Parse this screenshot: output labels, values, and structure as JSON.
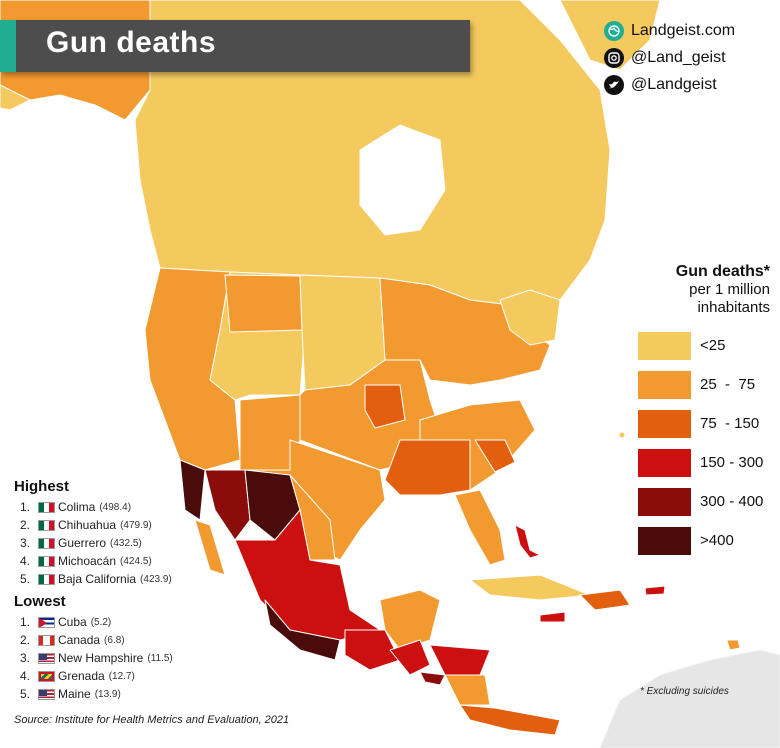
{
  "header": {
    "title": "Gun deaths"
  },
  "socials": [
    {
      "icon": "globe-icon",
      "text": "Landgeist.com"
    },
    {
      "icon": "instagram-icon",
      "text": "@Land_geist"
    },
    {
      "icon": "twitter-icon",
      "text": "@Landgeist"
    }
  ],
  "legend": {
    "title": "Gun deaths*",
    "subtitle_1": "per 1 million",
    "subtitle_2": "inhabitants",
    "items": [
      {
        "label": "<25",
        "color": "#f4c95d"
      },
      {
        "label": "25  -  75",
        "color": "#f29a30"
      },
      {
        "label": "75  - 150",
        "color": "#e25f0f"
      },
      {
        "label": "150 - 300",
        "color": "#cc0f0f"
      },
      {
        "label": "300 - 400",
        "color": "#8c0c0c"
      },
      {
        "label": ">400",
        "color": "#4a0b0b"
      }
    ]
  },
  "highest": {
    "heading": "Highest",
    "items": [
      {
        "rank": "1.",
        "name": "Colima",
        "value": "(498.4)",
        "flag": "mexico"
      },
      {
        "rank": "2.",
        "name": "Chihuahua",
        "value": "(479.9)",
        "flag": "mexico"
      },
      {
        "rank": "3.",
        "name": "Guerrero",
        "value": "(432.5)",
        "flag": "mexico"
      },
      {
        "rank": "4.",
        "name": "Michoacán",
        "value": "(424.5)",
        "flag": "mexico"
      },
      {
        "rank": "5.",
        "name": "Baja California",
        "value": "(423.9)",
        "flag": "mexico"
      }
    ]
  },
  "lowest": {
    "heading": "Lowest",
    "items": [
      {
        "rank": "1.",
        "name": "Cuba",
        "value": "(5.2)",
        "flag": "cuba"
      },
      {
        "rank": "2.",
        "name": "Canada",
        "value": "(6.8)",
        "flag": "canada"
      },
      {
        "rank": "3.",
        "name": "New Hampshire",
        "value": "(11.5)",
        "flag": "usa"
      },
      {
        "rank": "4.",
        "name": "Grenada",
        "value": "(12.7)",
        "flag": "grenada"
      },
      {
        "rank": "5.",
        "name": "Maine",
        "value": "(13.9)",
        "flag": "usa"
      }
    ]
  },
  "footnote": "* Excluding suicides",
  "source": "Source: Institute for Health Metrics and Evaluation, 2021",
  "colors": {
    "water": "#ffffff",
    "land_outside": "#e6e6e6",
    "border": "#ffffff",
    "accent": "#1fae8f",
    "title_bg": "#4d4d4d"
  },
  "map_regions": [
    {
      "name": "Alaska",
      "class": "25-75"
    },
    {
      "name": "Canada",
      "class": "<25"
    },
    {
      "name": "Greenland",
      "class": "<25"
    },
    {
      "name": "US West",
      "class": "25-75"
    },
    {
      "name": "Montana",
      "class": "25-75"
    },
    {
      "name": "US Northern Plains",
      "class": "<25"
    },
    {
      "name": "US Northeast",
      "class": "<25"
    },
    {
      "name": "Missouri",
      "class": "75-150"
    },
    {
      "name": "Louisiana-Mississippi-Alabama",
      "class": "75-150"
    },
    {
      "name": "South Carolina",
      "class": "75-150"
    },
    {
      "name": "Texas",
      "class": "25-75"
    },
    {
      "name": "Florida",
      "class": "25-75"
    },
    {
      "name": "Baja California",
      "class": ">400"
    },
    {
      "name": "Baja California Sur",
      "class": "25-75"
    },
    {
      "name": "Sonora",
      "class": "300-400"
    },
    {
      "name": "Chihuahua",
      "class": ">400"
    },
    {
      "name": "Coahuila-Nuevo Leon",
      "class": "25-75"
    },
    {
      "name": "Central Mexico",
      "class": "150-300"
    },
    {
      "name": "Guerrero-Michoacan-Colima",
      "class": ">400"
    },
    {
      "name": "Yucatan",
      "class": "25-75"
    },
    {
      "name": "Guatemala",
      "class": "150-300"
    },
    {
      "name": "Belize",
      "class": "150-300"
    },
    {
      "name": "Honduras",
      "class": "150-300"
    },
    {
      "name": "El Salvador",
      "class": "300-400"
    },
    {
      "name": "Nicaragua",
      "class": "25-75"
    },
    {
      "name": "Costa Rica-Panama",
      "class": "75-150"
    },
    {
      "name": "Cuba",
      "class": "<25"
    },
    {
      "name": "Jamaica",
      "class": "150-300"
    },
    {
      "name": "Bahamas",
      "class": "150-300"
    },
    {
      "name": "Haiti-Dominican Republic",
      "class": "75-150"
    },
    {
      "name": "Puerto Rico",
      "class": "150-300"
    },
    {
      "name": "Lesser Antilles",
      "class": "25-75"
    },
    {
      "name": "Bermuda",
      "class": "<25"
    }
  ]
}
